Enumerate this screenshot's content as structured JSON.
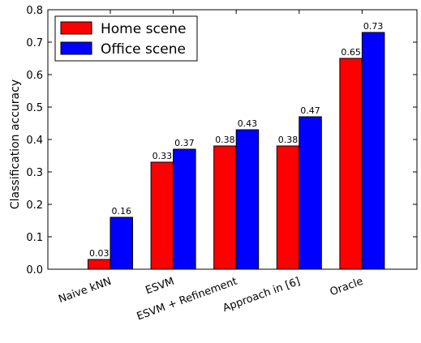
{
  "chart_data": {
    "type": "bar",
    "title": "",
    "xlabel": "",
    "ylabel": "Classification accuracy",
    "ylim": [
      0,
      0.8
    ],
    "yticks": [
      "0.0",
      "0.1",
      "0.2",
      "0.3",
      "0.4",
      "0.5",
      "0.6",
      "0.7",
      "0.8"
    ],
    "categories": [
      "Naive kNN",
      "ESVM",
      "ESVM + Refinement",
      "Approach in [6]",
      "Oracle"
    ],
    "series": [
      {
        "name": "Home scene",
        "color": "#ff0000",
        "values": [
          0.03,
          0.33,
          0.38,
          0.38,
          0.65
        ],
        "labels": [
          "0.03",
          "0.33",
          "0.38",
          "0.38",
          "0.65"
        ]
      },
      {
        "name": "Office scene",
        "color": "#0000ff",
        "values": [
          0.16,
          0.37,
          0.43,
          0.47,
          0.73
        ],
        "labels": [
          "0.16",
          "0.37",
          "0.43",
          "0.47",
          "0.73"
        ]
      }
    ],
    "grid": false,
    "legend_position": "top-left"
  }
}
